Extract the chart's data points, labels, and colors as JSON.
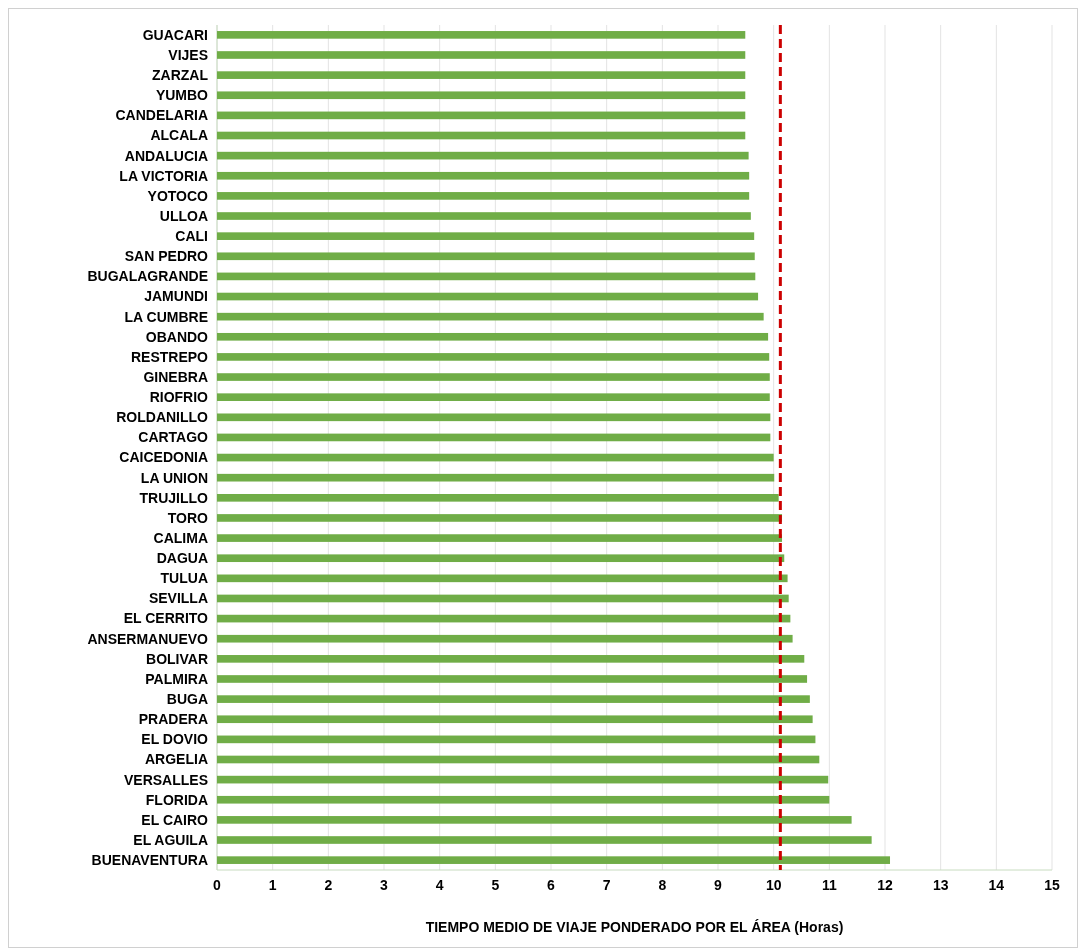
{
  "chart_data": {
    "type": "bar",
    "orientation": "horizontal",
    "xlabel": "TIEMPO MEDIO DE VIAJE  PONDERADO  POR  EL ÁREA (Horas)",
    "categories": [
      "GUACARI",
      "VIJES",
      "ZARZAL",
      "YUMBO",
      "CANDELARIA",
      "ALCALA",
      "ANDALUCIA",
      "LA VICTORIA",
      "YOTOCO",
      "ULLOA",
      "CALI",
      "SAN PEDRO",
      "BUGALAGRANDE",
      "JAMUNDI",
      "LA CUMBRE",
      "OBANDO",
      "RESTREPO",
      "GINEBRA",
      "RIOFRIO",
      "ROLDANILLO",
      "CARTAGO",
      "CAICEDONIA",
      "LA UNION",
      "TRUJILLO",
      "TORO",
      "CALIMA",
      "DAGUA",
      "TULUA",
      "SEVILLA",
      "EL CERRITO",
      "ANSERMANUEVO",
      "BOLIVAR",
      "PALMIRA",
      "BUGA ",
      "PRADERA",
      "EL DOVIO",
      "ARGELIA",
      "VERSALLES",
      "FLORIDA",
      "EL CAIRO",
      "EL AGUILA",
      "BUENAVENTURA"
    ],
    "values": [
      9.49,
      9.49,
      9.49,
      9.49,
      9.49,
      9.49,
      9.55,
      9.56,
      9.56,
      9.59,
      9.65,
      9.66,
      9.67,
      9.72,
      9.82,
      9.9,
      9.92,
      9.93,
      9.93,
      9.94,
      9.94,
      10.0,
      10.01,
      10.09,
      10.15,
      10.15,
      10.19,
      10.25,
      10.27,
      10.3,
      10.34,
      10.55,
      10.6,
      10.65,
      10.7,
      10.75,
      10.82,
      10.98,
      11.0,
      11.4,
      11.76,
      12.09
    ],
    "color": "#70ad47",
    "xlim": [
      0,
      15
    ],
    "xticks": [
      0,
      1,
      2,
      3,
      4,
      5,
      6,
      7,
      8,
      9,
      10,
      11,
      12,
      13,
      14,
      15
    ],
    "grid": "x",
    "ref_lines": [
      {
        "axis": "x",
        "value": 10.12,
        "color": "#cc0000",
        "line_style": "dashed"
      }
    ]
  }
}
